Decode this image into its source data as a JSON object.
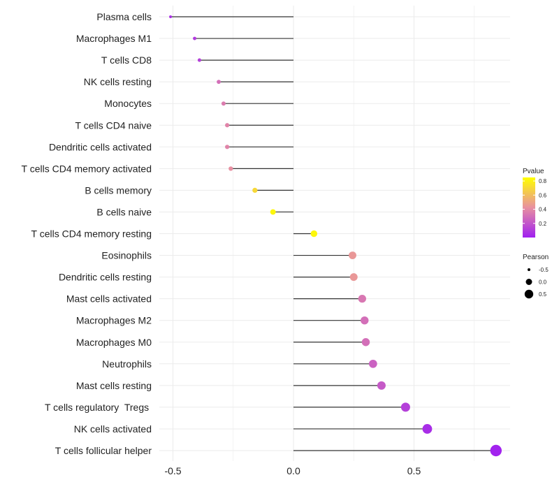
{
  "chart_data": {
    "type": "lollipop",
    "title": "",
    "xlabel": "",
    "ylabel": "",
    "xlim": [
      -0.53,
      0.88
    ],
    "x_ticks": [
      -0.5,
      0.0,
      0.5
    ],
    "x_tick_labels": [
      "-0.5",
      "0.0",
      "0.5"
    ],
    "grid": true,
    "categories": [
      "Plasma cells",
      "Macrophages M1",
      "T cells CD8",
      "NK cells resting",
      "Monocytes",
      "T cells CD4 naive",
      "Dendritic cells activated",
      "T cells CD4 memory activated",
      "B cells memory",
      "B cells naive",
      "T cells CD4 memory resting",
      "Eosinophils",
      "Dendritic cells resting",
      "Mast cells activated",
      "Macrophages M2",
      "Macrophages M0",
      "Neutrophils",
      "Mast cells resting",
      "T cells regulatory  Tregs ",
      "NK cells activated",
      "T cells follicular helper"
    ],
    "values": [
      -0.51,
      -0.41,
      -0.39,
      -0.31,
      -0.29,
      -0.275,
      -0.275,
      -0.26,
      -0.16,
      -0.085,
      0.085,
      0.245,
      0.25,
      0.285,
      0.295,
      0.3,
      0.33,
      0.365,
      0.465,
      0.555,
      0.84
    ],
    "pvalues": [
      0.06,
      0.1,
      0.12,
      0.3,
      0.35,
      0.38,
      0.38,
      0.42,
      0.7,
      0.82,
      0.82,
      0.45,
      0.45,
      0.33,
      0.3,
      0.3,
      0.25,
      0.22,
      0.12,
      0.05,
      0.01
    ],
    "color_legend": {
      "title": "Pvalue",
      "ticks": [
        0.2,
        0.4,
        0.6,
        0.8
      ],
      "tick_labels": [
        "0.2",
        "0.4",
        "0.6",
        "0.8"
      ],
      "range": [
        0.0,
        0.85
      ],
      "colors": {
        "low": "#a020f0",
        "mid": "#e890a0",
        "high": "#ffff00"
      }
    },
    "size_legend": {
      "title": "Pearson",
      "values": [
        -0.5,
        0.0,
        0.5
      ],
      "labels": [
        "-0.5",
        "0.0",
        "0.5"
      ]
    },
    "colors": {
      "stem": "#333333",
      "grid": "#ebebeb",
      "legend_point": "#000000"
    }
  }
}
